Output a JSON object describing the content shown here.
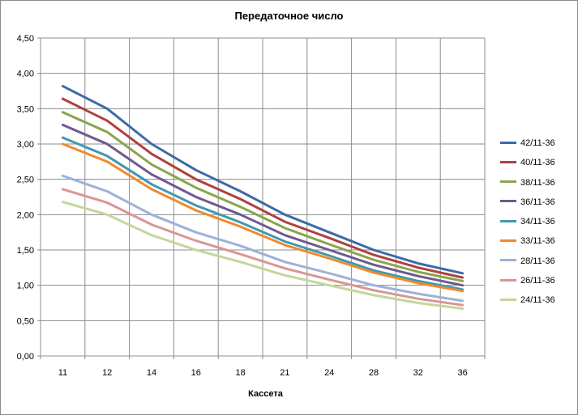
{
  "chart_data": {
    "type": "line",
    "title": "Передаточное число",
    "xlabel": "Кассета",
    "ylabel": "",
    "categories": [
      "11",
      "12",
      "14",
      "16",
      "18",
      "21",
      "24",
      "28",
      "32",
      "36"
    ],
    "ylim": [
      0,
      4.5
    ],
    "ytick_step": 0.5,
    "ytick_labels": [
      "0,00",
      "0,50",
      "1,00",
      "1,50",
      "2,00",
      "2,50",
      "3,00",
      "3,50",
      "4,00",
      "4,50"
    ],
    "grid": true,
    "legend_position": "right",
    "series": [
      {
        "name": "42/11-36",
        "color": "#3d6aa8",
        "values": [
          3.82,
          3.5,
          3.0,
          2.63,
          2.33,
          2.0,
          1.75,
          1.5,
          1.31,
          1.17
        ]
      },
      {
        "name": "40/11-36",
        "color": "#b0403c",
        "values": [
          3.64,
          3.33,
          2.86,
          2.5,
          2.22,
          1.9,
          1.67,
          1.43,
          1.25,
          1.11
        ]
      },
      {
        "name": "38/11-36",
        "color": "#89a54e",
        "values": [
          3.45,
          3.17,
          2.71,
          2.38,
          2.11,
          1.81,
          1.58,
          1.36,
          1.19,
          1.06
        ]
      },
      {
        "name": "36/11-36",
        "color": "#71588f",
        "values": [
          3.27,
          3.0,
          2.57,
          2.25,
          2.0,
          1.71,
          1.5,
          1.29,
          1.13,
          1.0
        ]
      },
      {
        "name": "34/11-36",
        "color": "#4198af",
        "values": [
          3.09,
          2.83,
          2.43,
          2.13,
          1.89,
          1.62,
          1.42,
          1.21,
          1.06,
          0.94
        ]
      },
      {
        "name": "33/11-36",
        "color": "#f08a2e",
        "values": [
          3.0,
          2.75,
          2.36,
          2.06,
          1.83,
          1.57,
          1.38,
          1.18,
          1.03,
          0.92
        ]
      },
      {
        "name": "28/11-36",
        "color": "#9db1d9",
        "values": [
          2.55,
          2.33,
          2.0,
          1.75,
          1.56,
          1.33,
          1.17,
          1.0,
          0.88,
          0.78
        ]
      },
      {
        "name": "26/11-36",
        "color": "#d99694",
        "values": [
          2.36,
          2.17,
          1.86,
          1.63,
          1.44,
          1.24,
          1.08,
          0.93,
          0.81,
          0.72
        ]
      },
      {
        "name": "24/11-36",
        "color": "#c3d69b",
        "values": [
          2.18,
          2.0,
          1.71,
          1.5,
          1.33,
          1.14,
          1.0,
          0.86,
          0.75,
          0.67
        ]
      }
    ]
  }
}
